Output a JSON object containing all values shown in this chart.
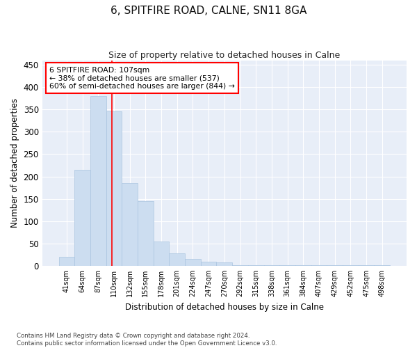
{
  "title_line1": "6, SPITFIRE ROAD, CALNE, SN11 8GA",
  "title_line2": "Size of property relative to detached houses in Calne",
  "xlabel": "Distribution of detached houses by size in Calne",
  "ylabel": "Number of detached properties",
  "bar_color": "#ccddf0",
  "bar_edge_color": "#aac4e0",
  "categories": [
    "41sqm",
    "64sqm",
    "87sqm",
    "110sqm",
    "132sqm",
    "155sqm",
    "178sqm",
    "201sqm",
    "224sqm",
    "247sqm",
    "270sqm",
    "292sqm",
    "315sqm",
    "338sqm",
    "361sqm",
    "384sqm",
    "407sqm",
    "429sqm",
    "452sqm",
    "475sqm",
    "498sqm"
  ],
  "values": [
    20,
    215,
    380,
    345,
    185,
    145,
    55,
    28,
    15,
    10,
    8,
    2,
    1,
    1,
    1,
    2,
    1,
    1,
    2,
    1,
    2
  ],
  "ylim": [
    0,
    460
  ],
  "yticks": [
    0,
    50,
    100,
    150,
    200,
    250,
    300,
    350,
    400,
    450
  ],
  "property_line_x": 2.88,
  "annotation_text": "6 SPITFIRE ROAD: 107sqm\n← 38% of detached houses are smaller (537)\n60% of semi-detached houses are larger (844) →",
  "footer_line1": "Contains HM Land Registry data © Crown copyright and database right 2024.",
  "footer_line2": "Contains public sector information licensed under the Open Government Licence v3.0.",
  "fig_background": "#ffffff",
  "plot_background": "#e8eef8"
}
